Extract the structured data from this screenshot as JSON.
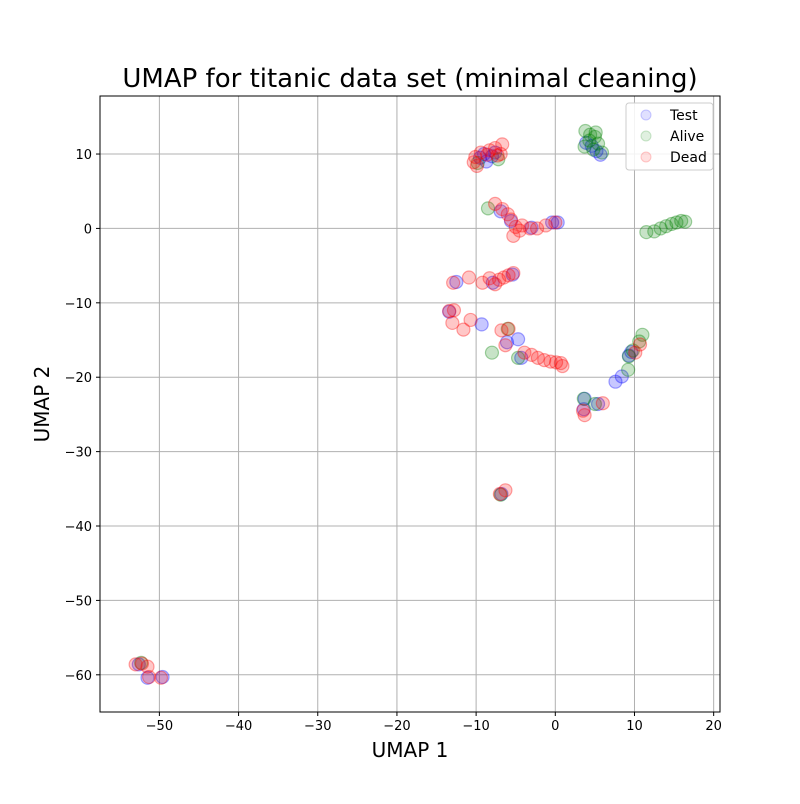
{
  "chart_data": {
    "type": "scatter",
    "title": "UMAP for titanic data set (minimal cleaning)",
    "xlabel": "UMAP 1",
    "ylabel": "UMAP 2",
    "xlim": [
      -57.5,
      20.8
    ],
    "ylim": [
      -65.0,
      17.8
    ],
    "xticks": [
      -50,
      -40,
      -30,
      -20,
      -10,
      0,
      10,
      20
    ],
    "yticks": [
      -60,
      -50,
      -40,
      -30,
      -20,
      -10,
      0,
      10
    ],
    "grid": true,
    "legend_position": "top-right",
    "series": [
      {
        "name": "Test",
        "color": "#0000ff",
        "points": [
          [
            -9.5,
            9.5
          ],
          [
            -8.7,
            9.0
          ],
          [
            -7.6,
            10.2
          ],
          [
            -9.0,
            10.0
          ],
          [
            -8.0,
            9.7
          ],
          [
            -6.9,
            2.3
          ],
          [
            -5.6,
            1.0
          ],
          [
            -3.0,
            0.1
          ],
          [
            -0.4,
            0.8
          ],
          [
            0.3,
            0.8
          ],
          [
            3.9,
            11.5
          ],
          [
            4.6,
            11.1
          ],
          [
            5.7,
            9.9
          ],
          [
            5.2,
            10.4
          ],
          [
            -12.5,
            -7.2
          ],
          [
            -7.9,
            -7.3
          ],
          [
            -5.4,
            -6.2
          ],
          [
            -13.4,
            -11.2
          ],
          [
            -9.3,
            -12.9
          ],
          [
            -6.1,
            -15.3
          ],
          [
            -4.7,
            -14.9
          ],
          [
            -4.3,
            -17.4
          ],
          [
            9.3,
            -17.1
          ],
          [
            9.6,
            -16.6
          ],
          [
            8.4,
            -19.9
          ],
          [
            7.6,
            -20.6
          ],
          [
            3.7,
            -22.9
          ],
          [
            3.6,
            -24.3
          ],
          [
            5.4,
            -23.6
          ],
          [
            -6.8,
            -35.7
          ],
          [
            -52.6,
            -58.6
          ],
          [
            -51.5,
            -60.4
          ],
          [
            -49.6,
            -60.3
          ]
        ]
      },
      {
        "name": "Alive",
        "color": "#008000",
        "points": [
          [
            3.8,
            13.1
          ],
          [
            4.4,
            12.6
          ],
          [
            5.0,
            12.3
          ],
          [
            4.3,
            11.8
          ],
          [
            3.7,
            11.0
          ],
          [
            5.4,
            11.4
          ],
          [
            5.9,
            10.2
          ],
          [
            4.8,
            10.6
          ],
          [
            5.1,
            12.9
          ],
          [
            11.5,
            -0.5
          ],
          [
            12.5,
            -0.4
          ],
          [
            13.3,
            0.0
          ],
          [
            14.0,
            0.3
          ],
          [
            14.7,
            0.6
          ],
          [
            15.3,
            0.8
          ],
          [
            15.9,
            1.0
          ],
          [
            16.4,
            0.9
          ],
          [
            -8.5,
            2.7
          ],
          [
            -9.8,
            8.8
          ],
          [
            -7.2,
            9.3
          ],
          [
            -8.0,
            -16.7
          ],
          [
            -6.0,
            -13.5
          ],
          [
            -4.7,
            -17.4
          ],
          [
            11.0,
            -14.3
          ],
          [
            10.6,
            -15.2
          ],
          [
            9.8,
            -16.4
          ],
          [
            9.3,
            -17.2
          ],
          [
            9.2,
            -19.0
          ],
          [
            3.6,
            -22.9
          ],
          [
            5.0,
            -23.6
          ],
          [
            -6.9,
            -35.8
          ],
          [
            -52.3,
            -58.4
          ]
        ]
      },
      {
        "name": "Dead",
        "color": "#ff0000",
        "points": [
          [
            -10.1,
            9.6
          ],
          [
            -9.4,
            10.2
          ],
          [
            -8.6,
            9.9
          ],
          [
            -7.6,
            10.8
          ],
          [
            -6.7,
            11.3
          ],
          [
            -7.3,
            9.8
          ],
          [
            -9.9,
            8.4
          ],
          [
            -8.3,
            10.5
          ],
          [
            -6.9,
            10.0
          ],
          [
            -10.3,
            8.9
          ],
          [
            -7.6,
            3.3
          ],
          [
            -6.7,
            2.6
          ],
          [
            -6.0,
            1.9
          ],
          [
            -5.6,
            1.2
          ],
          [
            -5.0,
            0.2
          ],
          [
            -4.2,
            0.4
          ],
          [
            -3.2,
            0.0
          ],
          [
            -2.3,
            0.0
          ],
          [
            -1.2,
            0.4
          ],
          [
            0.0,
            0.8
          ],
          [
            -5.3,
            -1.0
          ],
          [
            -4.5,
            -0.3
          ],
          [
            -12.9,
            -7.3
          ],
          [
            -10.9,
            -6.6
          ],
          [
            -9.2,
            -7.3
          ],
          [
            -8.3,
            -6.7
          ],
          [
            -7.6,
            -7.5
          ],
          [
            -7.1,
            -6.9
          ],
          [
            -6.5,
            -6.6
          ],
          [
            -5.9,
            -6.3
          ],
          [
            -5.3,
            -6.0
          ],
          [
            -13.4,
            -11.1
          ],
          [
            -12.8,
            -11.0
          ],
          [
            -13.0,
            -12.7
          ],
          [
            -11.6,
            -13.6
          ],
          [
            -10.7,
            -12.3
          ],
          [
            -6.8,
            -13.7
          ],
          [
            -6.3,
            -15.7
          ],
          [
            -5.9,
            -13.5
          ],
          [
            -3.9,
            -16.7
          ],
          [
            -3.0,
            -17.0
          ],
          [
            -2.2,
            -17.4
          ],
          [
            -1.4,
            -17.7
          ],
          [
            -0.6,
            -17.9
          ],
          [
            0.1,
            -18.0
          ],
          [
            0.7,
            -18.1
          ],
          [
            0.9,
            -18.5
          ],
          [
            10.7,
            -15.6
          ],
          [
            10.1,
            -16.7
          ],
          [
            3.7,
            -25.1
          ],
          [
            3.5,
            -24.5
          ],
          [
            6.0,
            -23.5
          ],
          [
            -6.3,
            -35.2
          ],
          [
            -7.0,
            -35.7
          ],
          [
            -53.0,
            -58.6
          ],
          [
            -52.2,
            -58.5
          ],
          [
            -51.5,
            -58.9
          ],
          [
            -51.3,
            -60.3
          ],
          [
            -49.8,
            -60.4
          ]
        ]
      }
    ]
  }
}
